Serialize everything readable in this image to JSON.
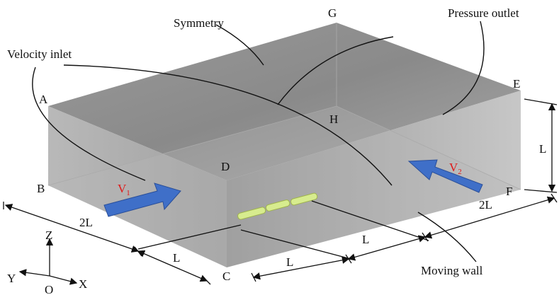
{
  "labels": [
    "Symmetry",
    "G",
    "Pressure outlet",
    "Velocity inlet",
    "A",
    "E",
    "H",
    "L",
    "D",
    "B",
    "F",
    "2L",
    "2L",
    "Z",
    "L",
    "L",
    "L",
    "Y",
    "O",
    "X",
    "C",
    "Moving wall"
  ],
  "velocities": [
    {
      "symbol": "V",
      "subscript": "1"
    },
    {
      "symbol": "V",
      "subscript": "2"
    }
  ]
}
